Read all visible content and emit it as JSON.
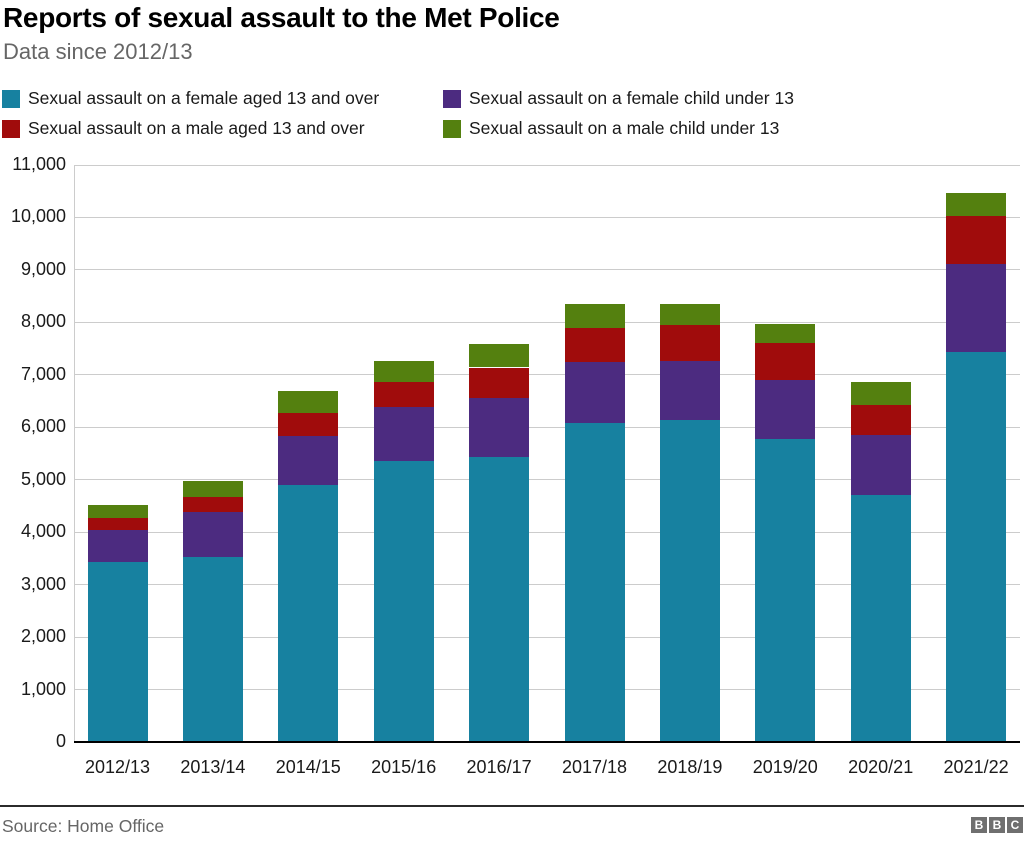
{
  "header": {
    "title": "Reports of sexual assault to the Met Police",
    "subtitle": "Data since 2012/13"
  },
  "footer": {
    "source": "Source: Home Office",
    "logo_letters": [
      "B",
      "B",
      "C"
    ]
  },
  "colors": {
    "teal": "#1781a0",
    "purple": "#4c2b80",
    "red": "#a00c0c",
    "green": "#54800f",
    "grid": "#cccccc",
    "axis": "#000000"
  },
  "chart_data": {
    "type": "bar",
    "stacked": true,
    "title": "Reports of sexual assault to the Met Police",
    "subtitle": "Data since 2012/13",
    "source": "Source: Home Office",
    "categories": [
      "2012/13",
      "2013/14",
      "2014/15",
      "2015/16",
      "2016/17",
      "2017/18",
      "2018/19",
      "2019/20",
      "2020/21",
      "2021/22"
    ],
    "series": [
      {
        "name": "Sexual assault on a female aged 13 and over",
        "color": "#1781a0",
        "values": [
          3440,
          3520,
          4900,
          5360,
          5440,
          6090,
          6130,
          5780,
          4710,
          7440
        ]
      },
      {
        "name": "Sexual assault on a female child under 13",
        "color": "#4c2b80",
        "values": [
          600,
          860,
          930,
          1030,
          1110,
          1160,
          1140,
          1120,
          1140,
          1670
        ]
      },
      {
        "name": "Sexual assault on a male aged 13 and over",
        "color": "#a00c0c",
        "values": [
          240,
          300,
          450,
          470,
          590,
          650,
          680,
          700,
          580,
          910
        ]
      },
      {
        "name": "Sexual assault on a male child under 13",
        "color": "#54800f",
        "values": [
          230,
          300,
          420,
          400,
          440,
          450,
          400,
          370,
          430,
          440
        ]
      }
    ],
    "totals": [
      4510,
      4980,
      6700,
      7260,
      7580,
      8350,
      8350,
      7970,
      6860,
      10460
    ],
    "xlabel": "",
    "ylabel": "",
    "ylim": [
      0,
      11000
    ],
    "ytick_step": 1000,
    "ytick_labels": [
      "0",
      "1,000",
      "2,000",
      "3,000",
      "4,000",
      "5,000",
      "6,000",
      "7,000",
      "8,000",
      "9,000",
      "10,000",
      "11,000"
    ],
    "grid": "horizontal",
    "legend_position": "top",
    "stack_order_bottom_to_top": [
      "Sexual assault on a female aged 13 and over",
      "Sexual assault on a female child under 13",
      "Sexual assault on a male aged 13 and over",
      "Sexual assault on a male child under 13"
    ]
  }
}
